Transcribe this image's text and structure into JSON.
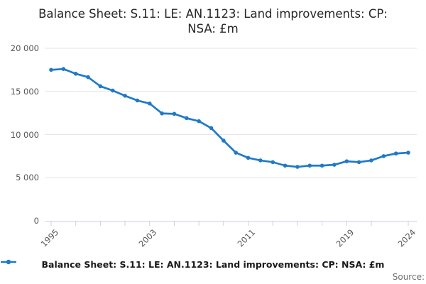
{
  "title": {
    "lines": [
      "Balance Sheet: S.11: LE: AN.1123: Land improvements: CP:",
      "NSA: £m"
    ]
  },
  "legend": {
    "label": "Balance Sheet: S.11: LE: AN.1123: Land improvements: CP: NSA: £m"
  },
  "source": {
    "label": "Source:"
  },
  "colors": {
    "line": "#1f7ac8",
    "grid": "#e6e6e6",
    "axis": "#c9d0e4",
    "tick_label": "#555555",
    "title_text": "#262626",
    "legend_text": "#1a1a1a",
    "source_text": "#6e6e6e"
  },
  "chart_data": {
    "type": "line",
    "title": "Balance Sheet: S.11: LE: AN.1123: Land improvements: CP: NSA: £m",
    "xlabel": "",
    "ylabel": "",
    "grid": true,
    "legend_position": "bottom",
    "xlim": [
      1995,
      2024
    ],
    "ylim": [
      0,
      20000
    ],
    "x": [
      1995,
      1996,
      1997,
      1998,
      1999,
      2000,
      2001,
      2002,
      2003,
      2004,
      2005,
      2006,
      2007,
      2008,
      2009,
      2010,
      2011,
      2012,
      2013,
      2014,
      2015,
      2016,
      2017,
      2018,
      2019,
      2020,
      2021,
      2022,
      2023,
      2024
    ],
    "series": [
      {
        "name": "Balance Sheet: S.11: LE: AN.1123: Land improvements: CP: NSA: £m",
        "values": [
          17500,
          17600,
          17050,
          16650,
          15600,
          15100,
          14500,
          13950,
          13600,
          12450,
          12400,
          11900,
          11550,
          10750,
          9300,
          7900,
          7300,
          7000,
          6800,
          6400,
          6250,
          6400,
          6400,
          6500,
          6900,
          6800,
          7000,
          7500,
          7800,
          7900
        ]
      }
    ],
    "yticks": [
      {
        "value": 0,
        "label": "0"
      },
      {
        "value": 5000,
        "label": "5 000"
      },
      {
        "value": 10000,
        "label": "10 000"
      },
      {
        "value": 15000,
        "label": "15 000"
      },
      {
        "value": 20000,
        "label": "20 000"
      }
    ],
    "xtick_marks": [
      1995,
      1997,
      1999,
      2001,
      2003,
      2005,
      2007,
      2009,
      2011,
      2013,
      2015,
      2017,
      2019,
      2021,
      2024
    ],
    "xtick_labels": [
      {
        "year": 1995,
        "label": "1995"
      },
      {
        "year": 2003,
        "label": "2003"
      },
      {
        "year": 2011,
        "label": "2011"
      },
      {
        "year": 2019,
        "label": "2019"
      },
      {
        "year": 2024,
        "label": "2024"
      }
    ]
  }
}
